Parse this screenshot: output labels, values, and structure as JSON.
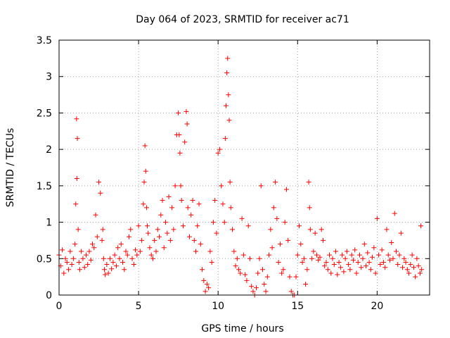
{
  "chart_data": {
    "type": "scatter",
    "title": "Day 064 of 2023, SRMTID for receiver ac71",
    "xlabel": "GPS time / hours",
    "ylabel": "SRMTID / TECUs",
    "xlim": [
      0,
      23.3
    ],
    "ylim": [
      0,
      3.5
    ],
    "xticks": [
      0,
      5,
      10,
      15,
      20
    ],
    "xtick_labels": [
      "0",
      "5",
      "10",
      "15",
      "20"
    ],
    "yticks": [
      0,
      0.5,
      1,
      1.5,
      2,
      2.5,
      3,
      3.5
    ],
    "ytick_labels": [
      "0",
      "0.5",
      "1",
      "1.5",
      "2",
      "2.5",
      "3",
      "3.5"
    ],
    "grid": true,
    "marker": "+",
    "color": "#ff0000",
    "series": [
      {
        "name": "SRMTID",
        "x": [
          0.0,
          0.1,
          0.2,
          0.3,
          0.4,
          0.5,
          0.6,
          0.7,
          0.8,
          0.9,
          1.0,
          1.05,
          1.1,
          1.12,
          1.15,
          1.2,
          1.25,
          1.3,
          1.4,
          1.5,
          1.6,
          1.7,
          1.8,
          1.9,
          2.0,
          2.1,
          2.2,
          2.3,
          2.4,
          2.5,
          2.6,
          2.7,
          2.75,
          2.8,
          2.85,
          2.9,
          3.0,
          3.1,
          3.2,
          3.3,
          3.4,
          3.5,
          3.6,
          3.7,
          3.8,
          3.9,
          4.0,
          4.1,
          4.2,
          4.3,
          4.4,
          4.5,
          4.6,
          4.7,
          4.8,
          4.9,
          5.0,
          5.1,
          5.2,
          5.3,
          5.35,
          5.4,
          5.45,
          5.5,
          5.55,
          5.6,
          5.7,
          5.8,
          5.9,
          6.0,
          6.1,
          6.2,
          6.3,
          6.4,
          6.5,
          6.6,
          6.7,
          6.8,
          6.9,
          7.0,
          7.1,
          7.2,
          7.3,
          7.4,
          7.5,
          7.55,
          7.6,
          7.65,
          7.7,
          7.8,
          7.9,
          8.0,
          8.05,
          8.1,
          8.2,
          8.3,
          8.4,
          8.5,
          8.6,
          8.7,
          8.8,
          8.9,
          9.0,
          9.1,
          9.2,
          9.3,
          9.4,
          9.5,
          9.6,
          9.7,
          9.8,
          9.9,
          10.0,
          10.1,
          10.2,
          10.3,
          10.4,
          10.45,
          10.5,
          10.55,
          10.6,
          10.65,
          10.7,
          10.75,
          10.8,
          10.9,
          11.0,
          11.1,
          11.2,
          11.3,
          11.4,
          11.5,
          11.6,
          11.7,
          11.8,
          11.9,
          12.0,
          12.1,
          12.2,
          12.3,
          12.4,
          12.5,
          12.6,
          12.7,
          12.8,
          12.9,
          13.0,
          13.1,
          13.2,
          13.3,
          13.4,
          13.5,
          13.6,
          13.7,
          13.8,
          13.9,
          14.0,
          14.1,
          14.2,
          14.3,
          14.4,
          14.5,
          14.6,
          14.7,
          14.8,
          14.9,
          15.0,
          15.1,
          15.2,
          15.3,
          15.4,
          15.5,
          15.6,
          15.7,
          15.75,
          15.8,
          15.9,
          16.0,
          16.1,
          16.2,
          16.3,
          16.4,
          16.5,
          16.6,
          16.7,
          16.8,
          16.9,
          17.0,
          17.1,
          17.2,
          17.3,
          17.4,
          17.5,
          17.6,
          17.7,
          17.8,
          17.9,
          18.0,
          18.1,
          18.2,
          18.3,
          18.4,
          18.5,
          18.6,
          18.7,
          18.8,
          18.9,
          19.0,
          19.1,
          19.2,
          19.3,
          19.4,
          19.5,
          19.6,
          19.7,
          19.8,
          19.9,
          20.0,
          20.1,
          20.2,
          20.3,
          20.4,
          20.5,
          20.6,
          20.7,
          20.8,
          20.9,
          21.0,
          21.1,
          21.2,
          21.3,
          21.4,
          21.5,
          21.6,
          21.7,
          21.8,
          21.9,
          22.0,
          22.1,
          22.2,
          22.3,
          22.4,
          22.5,
          22.6,
          22.7,
          22.75,
          22.8
        ],
        "y": [
          0.55,
          0.4,
          0.62,
          0.3,
          0.5,
          0.45,
          0.35,
          0.6,
          0.42,
          0.5,
          0.7,
          1.25,
          2.42,
          1.6,
          2.15,
          0.9,
          0.45,
          0.35,
          0.6,
          0.5,
          0.38,
          0.55,
          0.42,
          0.6,
          0.48,
          0.7,
          0.65,
          1.1,
          0.8,
          1.55,
          1.4,
          0.75,
          0.9,
          0.5,
          0.35,
          0.28,
          0.42,
          0.3,
          0.5,
          0.36,
          0.45,
          0.55,
          0.4,
          0.65,
          0.5,
          0.7,
          0.45,
          0.35,
          0.6,
          0.55,
          0.8,
          0.9,
          0.5,
          0.42,
          0.62,
          0.55,
          0.95,
          0.6,
          0.75,
          1.25,
          1.55,
          2.05,
          1.7,
          1.2,
          0.95,
          0.85,
          0.65,
          0.55,
          0.5,
          0.75,
          0.6,
          0.9,
          0.8,
          1.1,
          1.3,
          0.65,
          1.0,
          0.85,
          1.35,
          0.75,
          1.2,
          0.9,
          1.5,
          2.2,
          2.5,
          2.2,
          1.95,
          1.5,
          1.3,
          0.95,
          2.1,
          2.52,
          2.35,
          1.2,
          0.8,
          1.1,
          1.3,
          0.75,
          0.6,
          0.95,
          1.25,
          0.7,
          0.35,
          0.2,
          0.05,
          0.15,
          0.1,
          0.6,
          0.45,
          1.0,
          1.3,
          0.85,
          1.95,
          2.0,
          1.5,
          1.25,
          1.0,
          2.15,
          2.6,
          3.05,
          3.25,
          2.75,
          2.4,
          1.55,
          1.2,
          0.9,
          0.6,
          0.4,
          0.5,
          0.35,
          0.3,
          1.05,
          0.55,
          0.28,
          0.2,
          0.95,
          0.5,
          0.12,
          0.05,
          0.0,
          0.1,
          0.3,
          0.5,
          1.5,
          0.35,
          0.15,
          0.05,
          0.25,
          0.55,
          0.9,
          0.65,
          1.2,
          1.55,
          1.05,
          0.45,
          0.7,
          0.3,
          0.35,
          1.0,
          1.45,
          0.75,
          0.25,
          0.05,
          0.0,
          0.0,
          0.25,
          0.55,
          0.95,
          0.7,
          0.45,
          0.5,
          0.15,
          0.35,
          1.55,
          1.2,
          0.9,
          0.5,
          0.6,
          0.85,
          0.55,
          0.48,
          0.52,
          0.9,
          0.75,
          0.4,
          0.45,
          0.35,
          0.55,
          0.3,
          0.5,
          0.42,
          0.6,
          0.28,
          0.45,
          0.38,
          0.55,
          0.32,
          0.5,
          0.6,
          0.42,
          0.35,
          0.55,
          0.48,
          0.62,
          0.3,
          0.45,
          0.55,
          0.38,
          0.5,
          0.7,
          0.4,
          0.58,
          0.45,
          0.35,
          0.52,
          0.65,
          0.3,
          1.05,
          0.55,
          0.42,
          0.62,
          0.45,
          0.38,
          0.9,
          0.55,
          0.48,
          0.72,
          0.5,
          1.12,
          0.6,
          0.42,
          0.55,
          0.85,
          0.38,
          0.5,
          0.45,
          0.35,
          0.3,
          0.42,
          0.55,
          0.38,
          0.25,
          0.5,
          0.4,
          0.3,
          0.95,
          0.35
        ]
      }
    ]
  }
}
